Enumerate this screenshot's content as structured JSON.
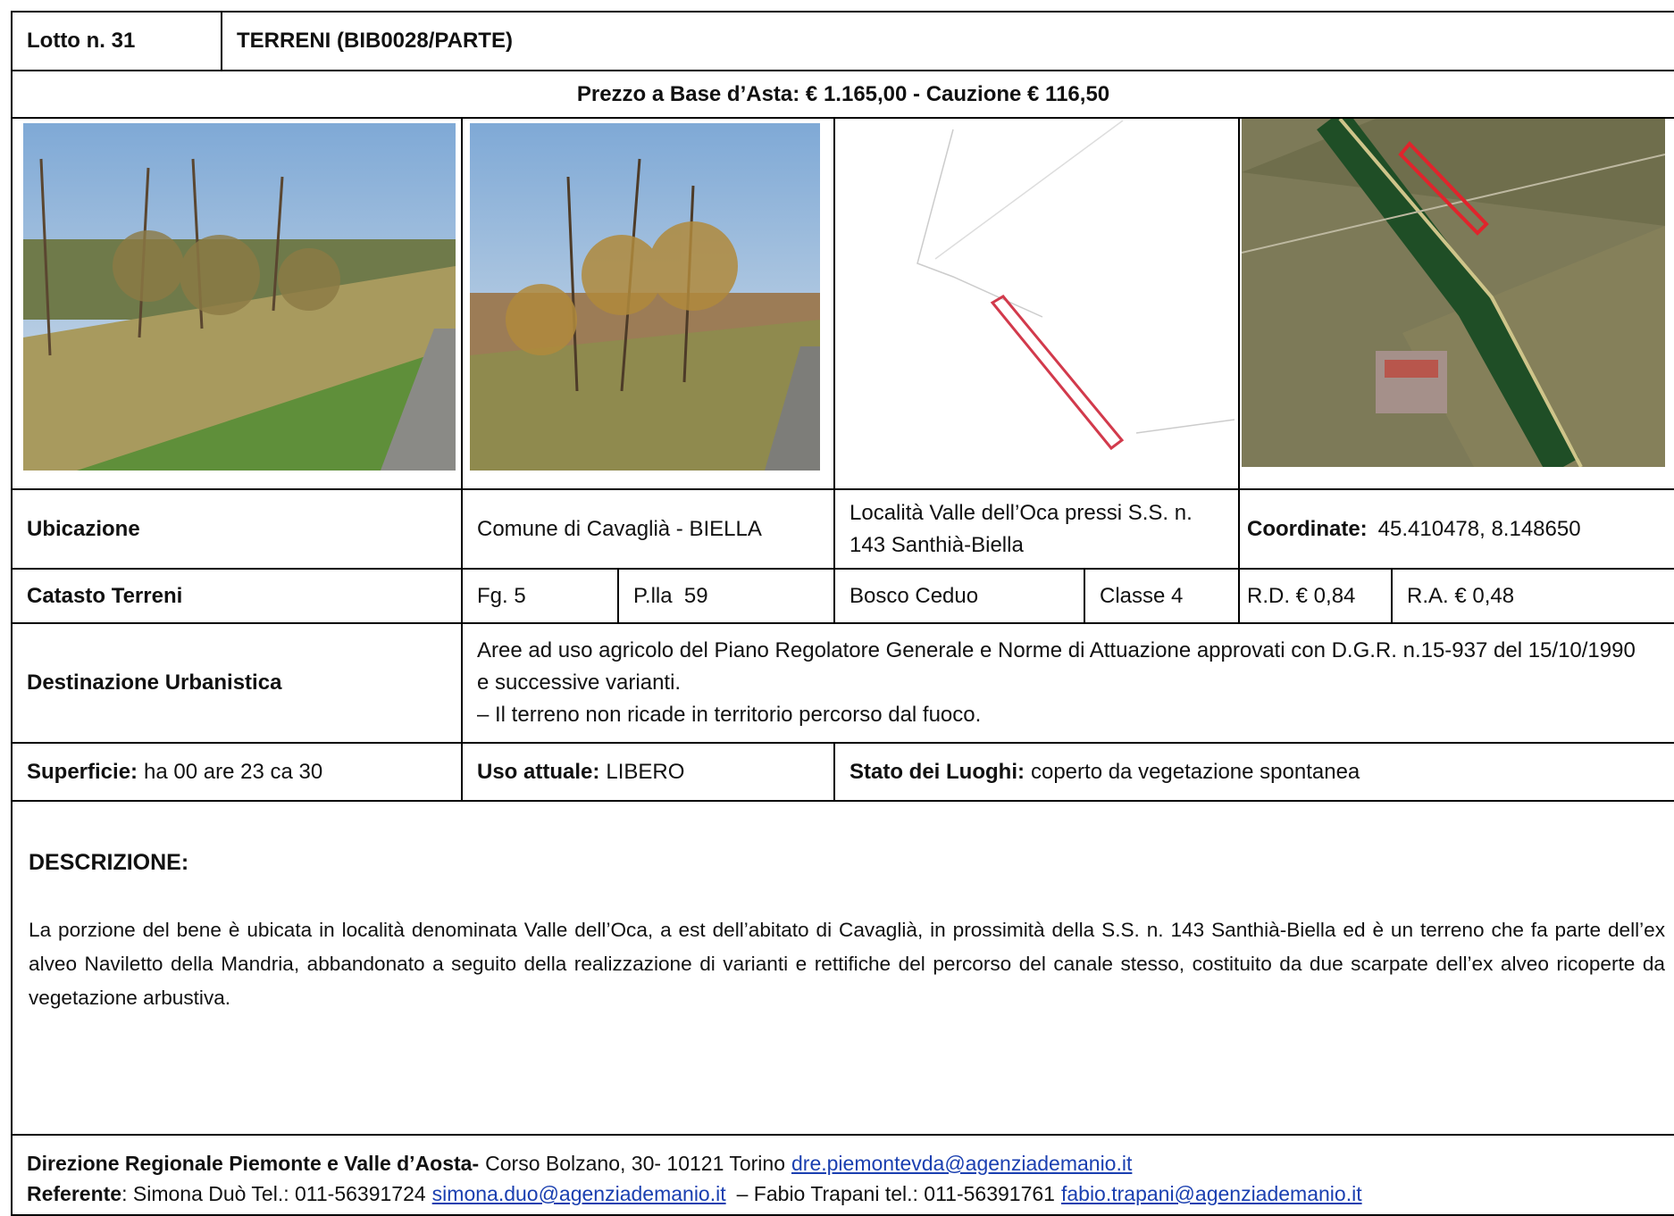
{
  "header": {
    "lot": "Lotto n. 31",
    "title": "TERRENI (BIB0028/PARTE)",
    "price": "Prezzo a Base d’Asta: € 1.165,00 - Cauzione € 116,50"
  },
  "ubicazione": {
    "label": "Ubicazione",
    "comune": "Comune di Cavaglià - BIELLA",
    "localita": "Località Valle dell’Oca pressi S.S. n. 143 Santhià-Biella",
    "coord_label": "Coordinate:",
    "coord_value": "45.410478, 8.148650"
  },
  "catasto": {
    "label": "Catasto Terreni",
    "foglio": "Fg. 5",
    "particella": "P.lla  59",
    "qualita": "Bosco Ceduo",
    "classe": "Classe 4",
    "rd": "R.D. € 0,84",
    "ra": "R.A. € 0,48"
  },
  "destinazione": {
    "label": "Destinazione Urbanistica",
    "text": "Aree ad uso agricolo del Piano Regolatore Generale e Norme di Attuazione approvati con D.G.R. n.15-937 del 15/10/1990 e successive varianti.",
    "note": "– Il terreno non ricade in territorio percorso dal fuoco."
  },
  "superficie": {
    "label": "Superficie:",
    "value": "ha 00 are 23 ca 30",
    "uso_label": "Uso attuale:",
    "uso_value": "LIBERO",
    "stato_label": "Stato dei Luoghi:",
    "stato_value": "coperto da vegetazione spontanea"
  },
  "descrizione": {
    "heading": "DESCRIZIONE:",
    "text": "La porzione del bene è ubicata in località denominata Valle dell’Oca, a est dell’abitato di Cavaglià, in prossimità della S.S. n. 143 Santhià-Biella ed è un terreno che fa parte dell’ex alveo Naviletto della Mandria, abbandonato a seguito della realizzazione di varianti e rettifiche del percorso del canale stesso, costituito da due scarpate dell’ex alveo ricoperte da vegetazione arbustiva."
  },
  "footer": {
    "office": "Direzione Regionale Piemonte e Valle d’Aosta-",
    "address": "Corso Bolzano, 30- 10121 Torino",
    "office_email": "dre.piemontevda@agenziademanio.it",
    "ref_label": "Referente",
    "ref_1": ": Simona Duò Tel.: 011-56391724",
    "ref_1_email": "simona.duo@agenziademanio.it",
    "ref_2": "–  Fabio Trapani tel.: 011-56391761",
    "ref_2_email": "fabio.trapani@agenziademanio.it"
  }
}
